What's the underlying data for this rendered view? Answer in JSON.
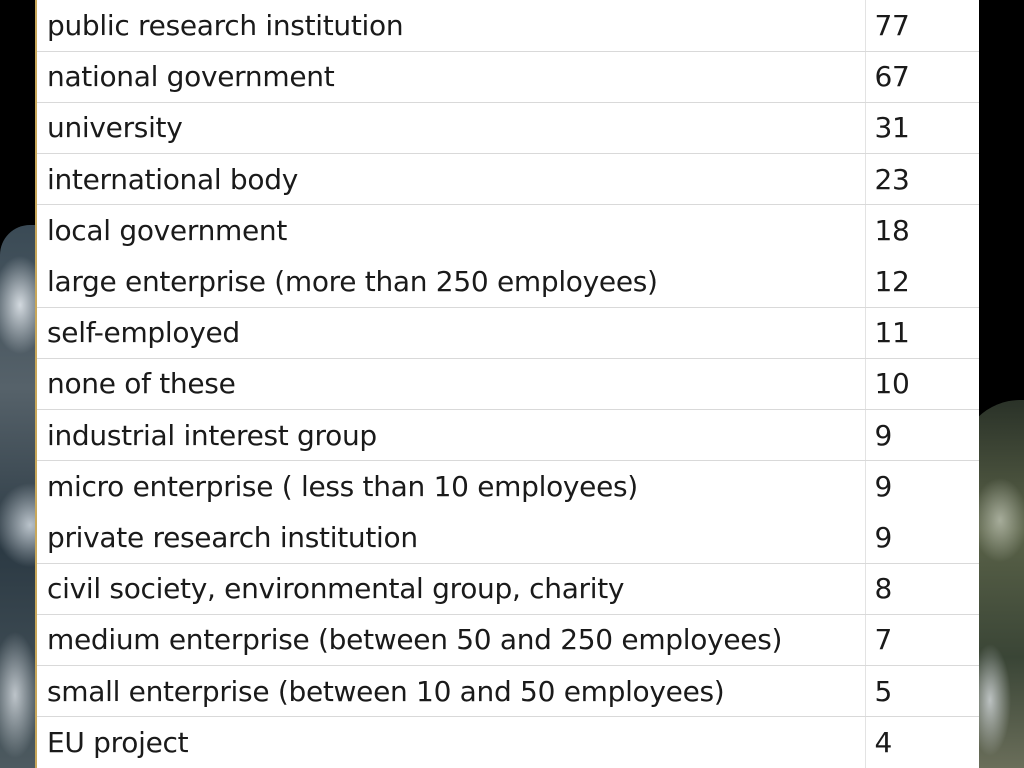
{
  "table": {
    "rows": [
      {
        "label": "public research institution",
        "value": "77",
        "ruled": true
      },
      {
        "label": "national government",
        "value": "67",
        "ruled": true
      },
      {
        "label": "university",
        "value": "31",
        "ruled": true
      },
      {
        "label": "international body",
        "value": "23",
        "ruled": true
      },
      {
        "label": "local government",
        "value": "18",
        "ruled": false
      },
      {
        "label": "large enterprise (more than 250 employees)",
        "value": "12",
        "ruled": true
      },
      {
        "label": "self-employed",
        "value": "11",
        "ruled": true
      },
      {
        "label": "none of these",
        "value": "10",
        "ruled": true
      },
      {
        "label": "industrial interest group",
        "value": "9",
        "ruled": true
      },
      {
        "label": "micro enterprise ( less than 10 employees)",
        "value": "9",
        "ruled": false
      },
      {
        "label": "private research institution",
        "value": "9",
        "ruled": true
      },
      {
        "label": "civil society, environmental group, charity",
        "value": "8",
        "ruled": true
      },
      {
        "label": "medium enterprise (between 50 and 250 employees)",
        "value": "7",
        "ruled": true
      },
      {
        "label": "small enterprise (between 10 and 50 employees)",
        "value": "5",
        "ruled": true
      },
      {
        "label": "EU project",
        "value": "4",
        "ruled": false
      }
    ]
  },
  "colors": {
    "table_border_accent": "#c8a75a",
    "row_rule": "#d9d9d9",
    "background": "#000000"
  }
}
